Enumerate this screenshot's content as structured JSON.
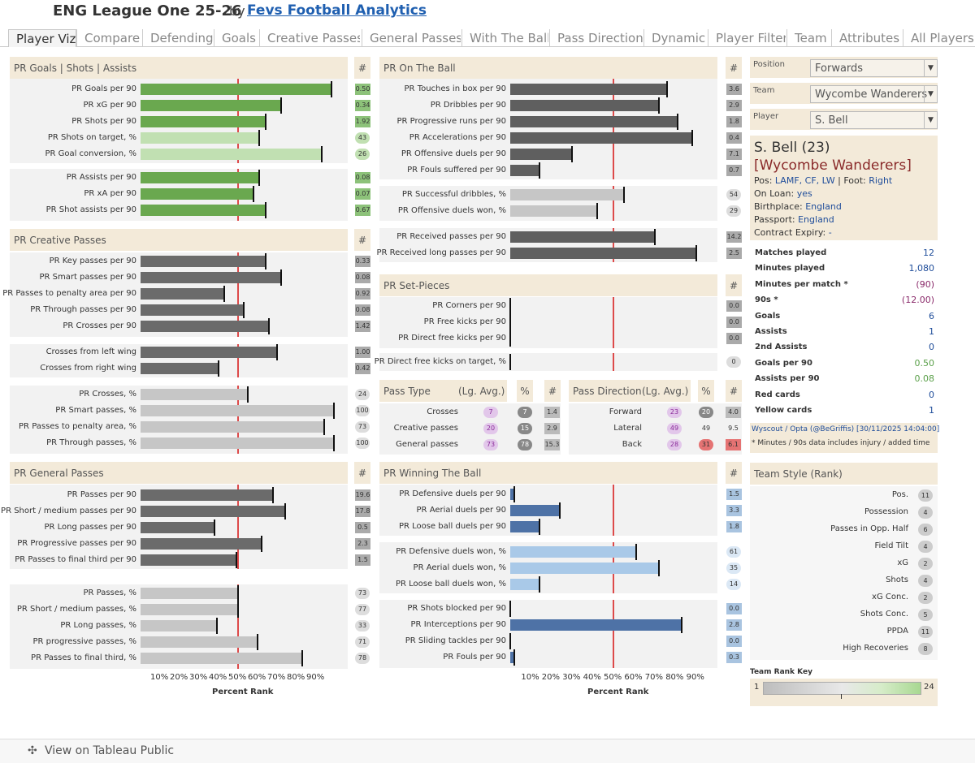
{
  "header": {
    "title": "ENG League One 25-26",
    "by": "by",
    "author": "Fevs Football Analytics"
  },
  "tabs": [
    "Player Viz",
    "Compare",
    "Defending",
    "Goals",
    "Creative Passes",
    "General Passes",
    "With The Ball",
    "Pass Direction",
    "Dynamic",
    "Player Filter",
    "Team",
    "Attributes",
    "All Players"
  ],
  "hash": "#",
  "chart_data": [
    {
      "type": "bar",
      "title": "PR Goals | Shots | Assists",
      "xlabel": "Percent Rank",
      "xlim": [
        0,
        100
      ],
      "reference_line": 50,
      "groups": [
        {
          "color": "#6aa84f",
          "labels": [
            "PR Goals per 90",
            "PR xG per 90",
            "PR Shots per 90"
          ],
          "values": [
            98,
            72,
            64
          ],
          "metric_values": [
            "0.50",
            "0.34",
            "1.92"
          ]
        },
        {
          "color": "#c1e0b2",
          "labels": [
            "PR Shots on target, %",
            "PR Goal conversion, %"
          ],
          "values": [
            61,
            93
          ],
          "metric_values": [
            "43",
            "26"
          ]
        },
        {
          "color": "#6aa84f",
          "labels": [
            "PR Assists per 90",
            "PR xA per 90",
            "PR Shot assists per 90"
          ],
          "values": [
            61,
            58,
            64
          ],
          "metric_values": [
            "0.08",
            "0.07",
            "0.67"
          ]
        }
      ]
    },
    {
      "type": "bar",
      "title": "PR Creative Passes",
      "xlabel": "Percent Rank",
      "xlim": [
        0,
        100
      ],
      "reference_line": 50,
      "groups": [
        {
          "color": "#6b6b6b",
          "labels": [
            "PR Key passes per 90",
            "PR Smart passes per 90",
            "PR Passes to penalty area per 90",
            "PR Through passes per 90",
            "PR Crosses per 90"
          ],
          "values": [
            64,
            72,
            43,
            53,
            66
          ],
          "metric_values": [
            "0.33",
            "0.08",
            "0.92",
            "0.08",
            "1.42"
          ]
        },
        {
          "color": "#6b6b6b",
          "labels": [
            "Crosses from left wing",
            "Crosses from right wing"
          ],
          "values": [
            70,
            40
          ],
          "metric_values": [
            "1.00",
            "0.42"
          ]
        },
        {
          "color": "#c6c6c6",
          "labels": [
            "PR Crosses, %",
            "PR Smart passes, %",
            "PR Passes to penalty area, %",
            "PR Through passes, %"
          ],
          "values": [
            55,
            99,
            94,
            99
          ],
          "metric_values": [
            "24",
            "100",
            "73",
            "100"
          ]
        }
      ]
    },
    {
      "type": "bar",
      "title": "PR General Passes",
      "xlabel": "Percent Rank",
      "xlim": [
        0,
        100
      ],
      "reference_line": 50,
      "groups": [
        {
          "color": "#6b6b6b",
          "labels": [
            "PR Passes per 90",
            "PR Short / medium passes per 90",
            "PR Long passes per 90",
            "PR Progressive passes per 90",
            "PR Passes to final third per 90"
          ],
          "values": [
            68,
            74,
            38,
            62,
            49
          ],
          "metric_values": [
            "19.6",
            "17.8",
            "0.5",
            "2.3",
            "1.5"
          ]
        },
        {
          "color": "#c6c6c6",
          "labels": [
            "PR Passes, %",
            "PR Short / medium passes, %",
            "PR Long passes, %",
            "PR progressive passes, %",
            "PR Passes to final third, %"
          ],
          "values": [
            50,
            50,
            39,
            60,
            83
          ],
          "metric_values": [
            "73",
            "77",
            "33",
            "71",
            "78"
          ]
        }
      ]
    },
    {
      "type": "bar",
      "title": "PR On The Ball",
      "xlabel": "Percent Rank",
      "xlim": [
        0,
        100
      ],
      "reference_line": 50,
      "groups": [
        {
          "color": "#5f5f5f",
          "labels": [
            "PR Touches in box per 90",
            "PR Dribbles per 90",
            "PR Progressive runs per 90",
            "PR Accelerations per 90",
            "PR Offensive duels per 90",
            "PR Fouls suffered per 90"
          ],
          "values": [
            76,
            72,
            81,
            88,
            30,
            14
          ],
          "metric_values": [
            "3.6",
            "2.9",
            "1.8",
            "0.4",
            "7.1",
            "0.7"
          ]
        },
        {
          "color": "#c6c6c6",
          "labels": [
            "PR Successful dribbles, %",
            "PR Offensive duels won, %"
          ],
          "values": [
            55,
            42
          ],
          "metric_values": [
            "54",
            "29"
          ]
        },
        {
          "color": "#5f5f5f",
          "labels": [
            "PR Received passes per 90",
            "PR Received long passes per 90"
          ],
          "values": [
            70,
            90
          ],
          "metric_values": [
            "14.2",
            "2.5"
          ]
        }
      ]
    },
    {
      "type": "bar",
      "title": "PR Set-Pieces",
      "xlim": [
        0,
        100
      ],
      "reference_line": 50,
      "groups": [
        {
          "color": "#5f5f5f",
          "labels": [
            "PR Corners per 90",
            "PR Free kicks per 90",
            "PR Direct free kicks per 90"
          ],
          "values": [
            0,
            0,
            0
          ],
          "metric_values": [
            "0.0",
            "0.0",
            "0.0"
          ]
        },
        {
          "color": "#c6c6c6",
          "labels": [
            "PR Direct free kicks on target, %"
          ],
          "values": [
            0
          ],
          "metric_values": [
            "0"
          ]
        }
      ]
    },
    {
      "type": "bar",
      "title": "PR Winning The Ball",
      "xlabel": "Percent Rank",
      "xlim": [
        0,
        100
      ],
      "reference_line": 50,
      "groups": [
        {
          "color": "#4e72a6",
          "labels": [
            "PR Defensive duels per 90",
            "PR Aerial duels per 90",
            "PR Loose ball duels per 90"
          ],
          "values": [
            2,
            24,
            14
          ],
          "metric_values": [
            "1.5",
            "3.3",
            "1.8"
          ]
        },
        {
          "color": "#a9c9e8",
          "labels": [
            "PR Defensive duels won, %",
            "PR Aerial duels won, %",
            "PR Loose ball duels won, %"
          ],
          "values": [
            61,
            72,
            14
          ],
          "metric_values": [
            "61",
            "35",
            "14"
          ]
        },
        {
          "color": "#4e72a6",
          "labels": [
            "PR Shots blocked per 90",
            "PR Interceptions per 90",
            "PR Sliding tackles per 90",
            "PR Fouls per 90"
          ],
          "values": [
            0,
            83,
            0,
            2
          ],
          "metric_values": [
            "0.0",
            "2.8",
            "0.0",
            "0.3"
          ]
        }
      ]
    }
  ],
  "axis": {
    "ticks": [
      "10%",
      "20%",
      "30%",
      "40%",
      "50%",
      "60%",
      "70%",
      "80%",
      "90%"
    ],
    "title": "Percent Rank"
  },
  "pass_type": {
    "title": "Pass Type",
    "avg": "(Lg. Avg.)",
    "pct": "%",
    "rows": [
      {
        "label": "Crosses",
        "avg": "7",
        "pct": "7",
        "val": "1.4"
      },
      {
        "label": "Creative passes",
        "avg": "20",
        "pct": "15",
        "val": "2.9"
      },
      {
        "label": "General passes",
        "avg": "73",
        "pct": "78",
        "val": "15.3"
      }
    ]
  },
  "pass_direction": {
    "title": "Pass Direction",
    "avg": "(Lg. Avg.)",
    "pct": "%",
    "rows": [
      {
        "label": "Forward",
        "avg": "23",
        "pct": "20",
        "val": "4.0"
      },
      {
        "label": "Lateral",
        "avg": "49",
        "pct": "49",
        "val": "9.5"
      },
      {
        "label": "Back",
        "avg": "28",
        "pct": "31",
        "val": "6.1"
      }
    ]
  },
  "filters": {
    "position_label": "Position",
    "position_value": "Forwards",
    "team_label": "Team",
    "team_value": "Wycombe Wanderers",
    "player_label": "Player",
    "player_value": "S. Bell"
  },
  "player": {
    "name": "S. Bell (23)",
    "team": "[Wycombe Wanderers]",
    "pos_label": "Pos:",
    "pos": "LAMF, CF, LW",
    "foot_label": "| Foot:",
    "foot": "Right",
    "loan_label": "On Loan:",
    "loan": "yes",
    "birth_label": "Birthplace:",
    "birth": "England",
    "passport_label": "Passport:",
    "passport": "England",
    "contract_label": "Contract Expiry:",
    "contract": "-"
  },
  "stats": [
    {
      "label": "Matches played",
      "value": "12",
      "color": "#1f4d9a"
    },
    {
      "label": "Minutes played",
      "value": "1,080",
      "color": "#1f4d9a"
    },
    {
      "label": "Minutes per match *",
      "value": "(90)",
      "color": "#8a2a6a"
    },
    {
      "label": "90s *",
      "value": "(12.00)",
      "color": "#8a2a6a"
    },
    {
      "label": "Goals",
      "value": "6",
      "color": "#1f4d9a"
    },
    {
      "label": "Assists",
      "value": "1",
      "color": "#1f4d9a"
    },
    {
      "label": "2nd Assists",
      "value": "0",
      "color": "#1f4d9a"
    },
    {
      "label": "Goals per 90",
      "value": "0.50",
      "color": "#5ba04a"
    },
    {
      "label": "Assists per 90",
      "value": "0.08",
      "color": "#5ba04a"
    },
    {
      "label": "Red cards",
      "value": "0",
      "color": "#1f4d9a"
    },
    {
      "label": "Yellow cards",
      "value": "1",
      "color": "#1f4d9a"
    }
  ],
  "source": {
    "line": "Wyscout / Opta (@BeGriffis) [30/11/2025 14:04:00]",
    "note": "* Minutes / 90s data includes injury / added time"
  },
  "team_style": {
    "title": "Team Style (Rank)",
    "rows": [
      {
        "label": "Pos.",
        "rank": "11"
      },
      {
        "label": "Possession",
        "rank": "4"
      },
      {
        "label": "Passes in Opp. Half",
        "rank": "6"
      },
      {
        "label": "Field Tilt",
        "rank": "4"
      },
      {
        "label": "xG",
        "rank": "2"
      },
      {
        "label": "Shots",
        "rank": "4"
      },
      {
        "label": "xG Conc.",
        "rank": "2"
      },
      {
        "label": "Shots Conc.",
        "rank": "5"
      },
      {
        "label": "PPDA",
        "rank": "11"
      },
      {
        "label": "High Recoveries",
        "rank": "8"
      }
    ]
  },
  "rank_key": {
    "title": "Team Rank Key",
    "min": "1",
    "max": "24"
  },
  "footer": {
    "label": "View on Tableau Public"
  }
}
